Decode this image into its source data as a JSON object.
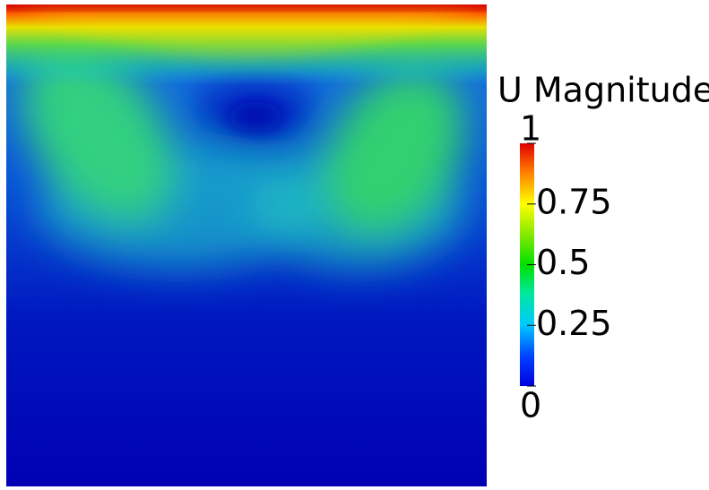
{
  "colorbar": {
    "title": "U Magnitude",
    "lim": [
      0,
      1
    ],
    "ticks": [
      0,
      0.25,
      0.5,
      0.75,
      1
    ]
  }
}
